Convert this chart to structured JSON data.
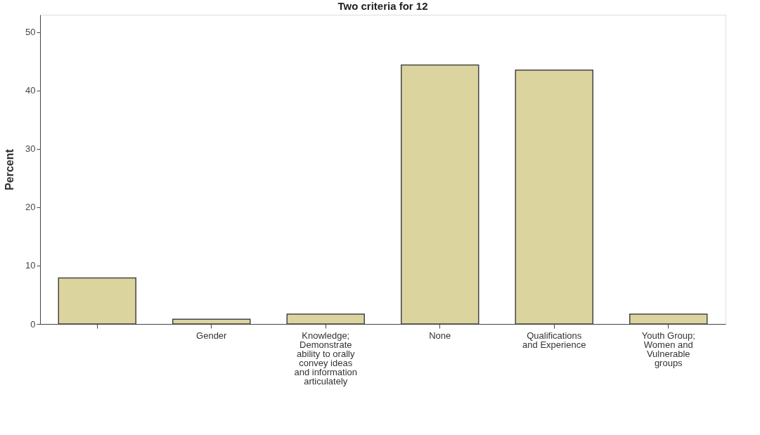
{
  "chart_data": {
    "type": "bar",
    "title": "Two criteria for 12",
    "ylabel": "Percent",
    "categories": [
      null,
      "Gender",
      "Knowledge;\nDemonstrate\nability to orally\nconvey ideas\nand information\narticulately",
      "None",
      "Qualifications\nand Experience",
      "Youth Group;\nWomen and\nVulnerable\ngroups"
    ],
    "values": [
      7.9,
      0.8,
      1.7,
      44.4,
      43.5,
      1.7
    ],
    "color": "#dbd49e",
    "ylim": [
      0,
      53
    ],
    "yticks": [
      0,
      10,
      20,
      30,
      40,
      50
    ],
    "grid": false
  }
}
